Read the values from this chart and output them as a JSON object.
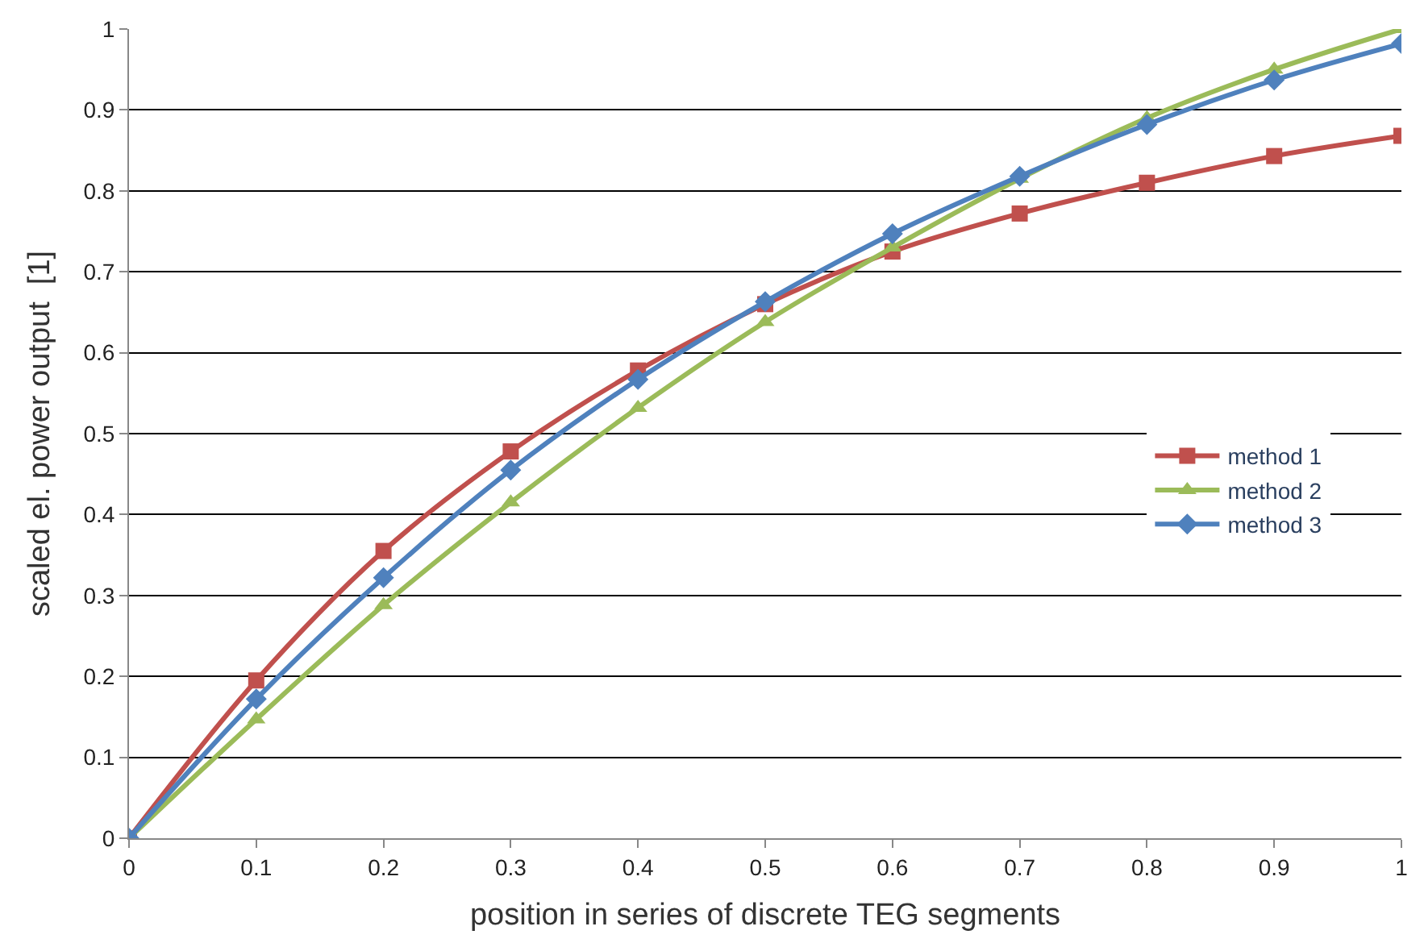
{
  "chart_data": {
    "type": "line",
    "xlabel": "position in series of discrete TEG segments",
    "ylabel": "scaled el. power output  [1]",
    "x": [
      0,
      0.1,
      0.2,
      0.3,
      0.4,
      0.5,
      0.6,
      0.7,
      0.8,
      0.9,
      1
    ],
    "series": [
      {
        "name": "method 1",
        "color": "#c0504d",
        "marker": "square",
        "values": [
          0,
          0.195,
          0.355,
          0.478,
          0.578,
          0.66,
          0.725,
          0.772,
          0.81,
          0.843,
          0.868
        ]
      },
      {
        "name": "method 2",
        "color": "#9bbb59",
        "marker": "triangle",
        "values": [
          0,
          0.147,
          0.288,
          0.415,
          0.532,
          0.638,
          0.73,
          0.815,
          0.89,
          0.95,
          1.0
        ]
      },
      {
        "name": "method 3",
        "color": "#4f81bd",
        "marker": "diamond",
        "values": [
          0,
          0.172,
          0.322,
          0.455,
          0.567,
          0.663,
          0.747,
          0.818,
          0.882,
          0.937,
          0.982
        ]
      }
    ],
    "xlim": [
      0,
      1
    ],
    "ylim": [
      0,
      1
    ],
    "xticks": [
      0,
      0.1,
      0.2,
      0.3,
      0.4,
      0.5,
      0.6,
      0.7,
      0.8,
      0.9,
      1
    ],
    "yticks": [
      0,
      0.1,
      0.2,
      0.3,
      0.4,
      0.5,
      0.6,
      0.7,
      0.8,
      0.9,
      1
    ],
    "grid": "y",
    "legend": "right",
    "line_style": "solid"
  }
}
